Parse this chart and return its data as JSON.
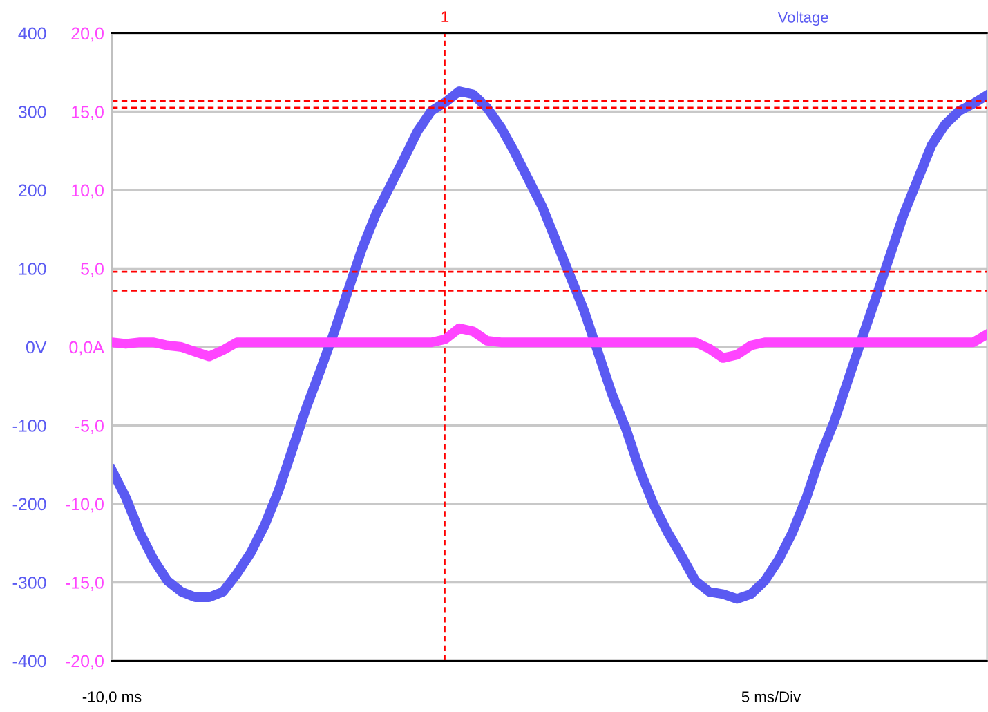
{
  "chart_data": {
    "type": "line",
    "categories": [
      null,
      null,
      null,
      null,
      null,
      null,
      null,
      null,
      null,
      null,
      null,
      null,
      null,
      null,
      null,
      null,
      null,
      null,
      null,
      null,
      null,
      null,
      null,
      null,
      null,
      null,
      null,
      null,
      null,
      null,
      null,
      null,
      null,
      null,
      null,
      null,
      null,
      null,
      null,
      null,
      null,
      null,
      null,
      null,
      null,
      null,
      null,
      null,
      null,
      null,
      null,
      null,
      null,
      null,
      null,
      null,
      null,
      null,
      null,
      null,
      null,
      null,
      null,
      null
    ],
    "series": [
      {
        "name": "Voltage",
        "color": "#5a5af2",
        "values": [
          -157,
          -192,
          -236,
          -271,
          -298,
          -312,
          -319,
          -319,
          -312,
          -289,
          -262,
          -227,
          -183,
          -130,
          -77,
          -30,
          19,
          72,
          125,
          169,
          204,
          239,
          275,
          301,
          312,
          326,
          322,
          305,
          280,
          248,
          213,
          178,
          134,
          90,
          46,
          -7,
          -60,
          -104,
          -157,
          -201,
          -236,
          -266,
          -298,
          -312,
          -315,
          -321,
          -315,
          -298,
          -271,
          -236,
          -192,
          -139,
          -95,
          -42,
          11,
          63,
          116,
          169,
          213,
          257,
          284,
          301,
          310,
          321
        ]
      },
      {
        "color": "#ff44ff",
        "axis": "y2",
        "values": [
          0.3,
          0.2,
          0.3,
          0.3,
          0.1,
          0.0,
          -0.3,
          -0.6,
          -0.2,
          0.3,
          0.3,
          0.3,
          0.3,
          0.3,
          0.3,
          0.3,
          0.3,
          0.3,
          0.3,
          0.3,
          0.3,
          0.3,
          0.3,
          0.3,
          0.5,
          1.2,
          1.0,
          0.4,
          0.3,
          0.3,
          0.3,
          0.3,
          0.3,
          0.3,
          0.3,
          0.3,
          0.3,
          0.3,
          0.3,
          0.3,
          0.3,
          0.3,
          0.3,
          -0.1,
          -0.7,
          -0.5,
          0.1,
          0.3,
          0.3,
          0.3,
          0.3,
          0.3,
          0.3,
          0.3,
          0.3,
          0.3,
          0.3,
          0.3,
          0.3,
          0.3,
          0.3,
          0.3,
          0.3,
          0.8
        ]
      }
    ],
    "ylim": [
      -400,
      400
    ],
    "yticks": [
      {
        "value": 400,
        "label": "400"
      },
      {
        "value": 300,
        "label": "300"
      },
      {
        "value": 200,
        "label": "200"
      },
      {
        "value": 100,
        "label": "100"
      },
      {
        "value": 0,
        "label": "0V"
      },
      {
        "value": -100,
        "label": "-100"
      },
      {
        "value": -200,
        "label": "-200"
      },
      {
        "value": -300,
        "label": "-300"
      },
      {
        "value": -400,
        "label": "-400"
      }
    ],
    "y2lim": [
      -20,
      20
    ],
    "y2ticks": [
      {
        "value": 20,
        "label": "20,0"
      },
      {
        "value": 15,
        "label": "15,0"
      },
      {
        "value": 10,
        "label": "10,0"
      },
      {
        "value": 5,
        "label": "5,0"
      },
      {
        "value": 0,
        "label": "0,0A"
      },
      {
        "value": -5,
        "label": "-5,0"
      },
      {
        "value": -10,
        "label": "-10,0"
      },
      {
        "value": -15,
        "label": "-15,0"
      },
      {
        "value": -20,
        "label": "-20,0"
      }
    ],
    "ref_lines": [
      {
        "axis": "y",
        "value": 314,
        "label": null,
        "color": "#ff0000",
        "line_style": "dashed"
      },
      {
        "axis": "y",
        "value": 305,
        "label": null,
        "color": "#ff0000",
        "line_style": "dashed"
      },
      {
        "axis": "y",
        "value": 96,
        "label": null,
        "color": "#ff0000",
        "line_style": "dashed"
      },
      {
        "axis": "y",
        "value": 72,
        "label": null,
        "color": "#ff0000",
        "line_style": "dashed"
      }
    ],
    "annotations": [
      "-10,0 ms",
      "5 ms/Div",
      "1"
    ],
    "grid": "y",
    "legend": false,
    "marker": "none",
    "line_style": "solid"
  }
}
